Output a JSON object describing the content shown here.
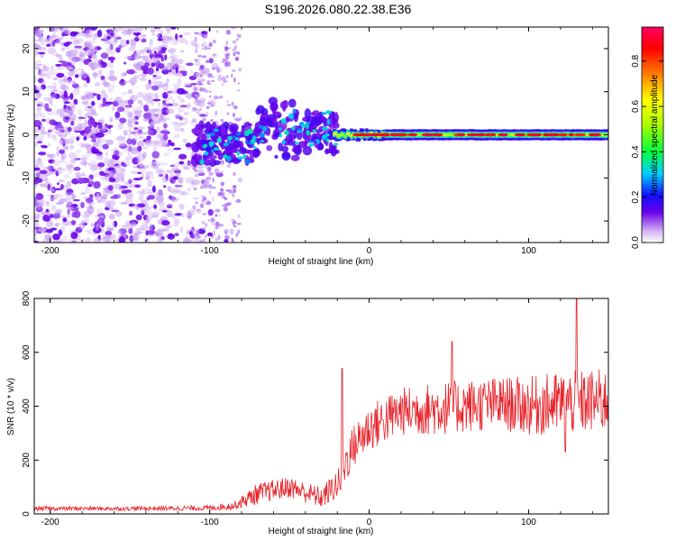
{
  "title": "S196.2026.080.22.38.E36",
  "colors": {
    "snr_line": "#e8232a",
    "axis": "#000000"
  },
  "chart_data": [
    {
      "type": "heatmap",
      "id": "spectrogram",
      "xlabel": "Height of straight line (km)",
      "ylabel": "Frequency (Hz)",
      "xlim": [
        -210,
        150
      ],
      "ylim": [
        -25,
        25
      ],
      "x_ticks": [
        -200,
        -100,
        0,
        100
      ],
      "x_tick_labels": [
        "-200",
        "-100",
        "0",
        "100"
      ],
      "y_ticks": [
        -20,
        -10,
        0,
        10,
        20
      ],
      "y_tick_labels": [
        "-20",
        "-10",
        "0",
        "10",
        "20"
      ],
      "colorbar": {
        "label": "Normalized spectral amplitude",
        "range": [
          0.0,
          0.95
        ],
        "ticks": [
          0.0,
          0.2,
          0.4,
          0.6,
          0.8
        ],
        "tick_labels": [
          "0.0",
          "0.2",
          "0.4",
          "0.6",
          "0.8"
        ]
      },
      "features": [
        {
          "name": "broadband noise",
          "x_range": [
            -210,
            -85
          ],
          "freq_range": [
            -25,
            25
          ],
          "amplitude": 0.15
        },
        {
          "name": "transition scatter",
          "x_range": [
            -110,
            -20
          ],
          "freq_range": [
            -8,
            10
          ],
          "amplitude": 0.3
        },
        {
          "name": "carrier line",
          "x_range": [
            -20,
            150
          ],
          "frequency": 0,
          "amplitude": 0.9
        }
      ]
    },
    {
      "type": "line",
      "id": "snr",
      "xlabel": "Height of straight line (km)",
      "ylabel": "SNR (10 * v/v)",
      "xlim": [
        -210,
        150
      ],
      "ylim": [
        0,
        800
      ],
      "x_ticks": [
        -200,
        -100,
        0,
        100
      ],
      "x_tick_labels": [
        "-200",
        "-100",
        "0",
        "100"
      ],
      "y_ticks": [
        0,
        200,
        400,
        600,
        800
      ],
      "y_tick_labels": [
        "0",
        "200",
        "400",
        "600",
        "800"
      ],
      "profile": {
        "x": [
          -210,
          -150,
          -100,
          -85,
          -70,
          -50,
          -30,
          -18,
          -15,
          -10,
          0,
          20,
          40,
          60,
          80,
          100,
          120,
          150
        ],
        "mean": [
          20,
          20,
          22,
          30,
          75,
          100,
          60,
          120,
          190,
          250,
          320,
          380,
          390,
          400,
          410,
          400,
          410,
          420
        ],
        "spread": [
          8,
          8,
          10,
          15,
          40,
          40,
          40,
          60,
          80,
          80,
          90,
          90,
          100,
          100,
          100,
          110,
          120,
          120
        ]
      },
      "peaks": [
        {
          "x": -17,
          "y": 540
        },
        {
          "x": 52,
          "y": 640
        },
        {
          "x": 130,
          "y": 800
        },
        {
          "x": 123,
          "y": 230
        }
      ]
    }
  ]
}
